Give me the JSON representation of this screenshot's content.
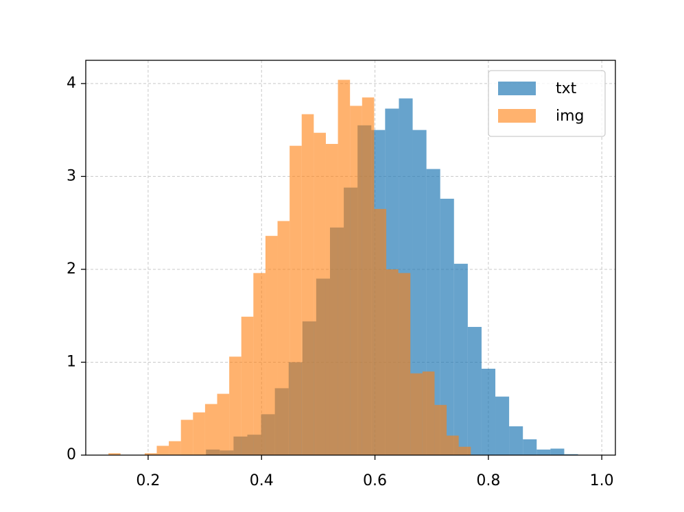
{
  "chart_data": {
    "type": "histogram",
    "series": [
      {
        "name": "txt",
        "color": "#1f77b4",
        "bins": [
          0.302,
          0.3263,
          0.3506,
          0.3749,
          0.3992,
          0.4235,
          0.4478,
          0.4721,
          0.4964,
          0.5207,
          0.545,
          0.5693,
          0.5936,
          0.6179,
          0.6422,
          0.6665,
          0.6908,
          0.7151,
          0.7394,
          0.7637,
          0.788,
          0.8123,
          0.8366,
          0.8609,
          0.8852,
          0.9095,
          0.9338,
          0.9581
        ],
        "values": [
          0.06,
          0.05,
          0.2,
          0.22,
          0.44,
          0.72,
          1.0,
          1.44,
          1.9,
          2.45,
          2.88,
          3.55,
          3.5,
          3.73,
          3.84,
          3.5,
          3.08,
          2.76,
          2.06,
          1.38,
          0.93,
          0.63,
          0.31,
          0.17,
          0.06,
          0.07,
          0.01
        ]
      },
      {
        "name": "img",
        "color": "#ff7f0e",
        "bins": [
          0.13,
          0.1513,
          0.1726,
          0.1939,
          0.2152,
          0.2365,
          0.2578,
          0.2791,
          0.3004,
          0.3217,
          0.343,
          0.3643,
          0.3856,
          0.4069,
          0.4282,
          0.4495,
          0.4708,
          0.4921,
          0.5134,
          0.5347,
          0.556,
          0.5773,
          0.5986,
          0.6199,
          0.6412,
          0.6625,
          0.6838,
          0.7051,
          0.7264,
          0.7477,
          0.769
        ],
        "values": [
          0.02,
          0,
          0,
          0.02,
          0.1,
          0.15,
          0.38,
          0.46,
          0.55,
          0.66,
          1.06,
          1.49,
          1.96,
          2.36,
          2.52,
          3.33,
          3.67,
          3.47,
          3.35,
          4.04,
          3.76,
          3.85,
          2.65,
          2.0,
          1.96,
          0.88,
          0.9,
          0.54,
          0.21,
          0.09
        ]
      }
    ],
    "xlim": [
      0.09,
      1.024
    ],
    "ylim": [
      0,
      4.25
    ],
    "xticks": [
      0.2,
      0.4,
      0.6,
      0.8,
      {
        "value": 1,
        "label": "1.0"
      }
    ],
    "yticks": [
      0,
      1,
      2,
      3,
      4
    ],
    "grid": true,
    "legend": "upper right"
  }
}
